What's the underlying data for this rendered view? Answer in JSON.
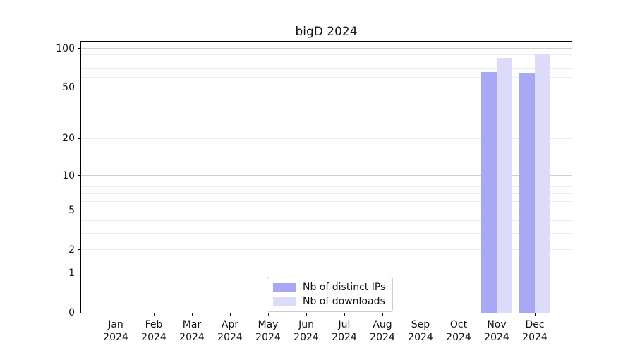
{
  "chart_data": {
    "type": "bar",
    "title": "bigD 2024",
    "categories": [
      "Jan",
      "Feb",
      "Mar",
      "Apr",
      "May",
      "Jun",
      "Jul",
      "Aug",
      "Sep",
      "Oct",
      "Nov",
      "Dec"
    ],
    "category_year": "2024",
    "series": [
      {
        "name": "Nb of distinct IPs",
        "color": "#a8a8f5",
        "values": [
          null,
          null,
          null,
          null,
          null,
          null,
          null,
          null,
          null,
          null,
          66,
          65
        ]
      },
      {
        "name": "Nb of downloads",
        "color": "#dcdcfa",
        "values": [
          null,
          null,
          null,
          null,
          null,
          null,
          null,
          null,
          null,
          null,
          85,
          90
        ]
      }
    ],
    "yscale": "log1p",
    "ylim": [
      0,
      113
    ],
    "yticks": [
      100,
      50,
      20,
      10,
      5,
      2,
      1,
      0
    ],
    "grid_major_values": [
      1,
      10,
      100
    ],
    "grid_minor_values": [
      2,
      3,
      4,
      5,
      6,
      7,
      8,
      9,
      20,
      30,
      40,
      50,
      60,
      70,
      80,
      90
    ],
    "grid": "on",
    "legend_position": "lower center"
  },
  "colors": {
    "grid_minor": "#ebebeb",
    "grid_major": "#cfcfcf",
    "axis": "#000000",
    "text": "#111111",
    "legend_border": "#cccccc",
    "background": "#ffffff"
  }
}
